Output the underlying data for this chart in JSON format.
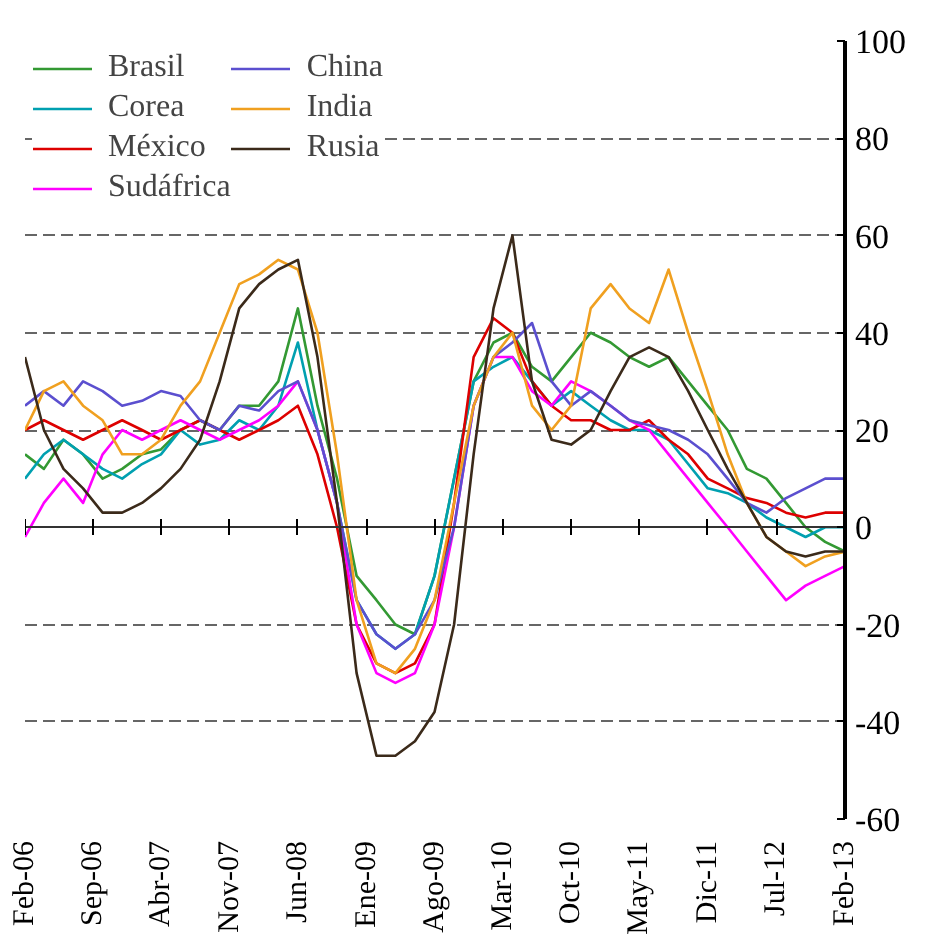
{
  "chart_data": {
    "type": "line",
    "x": [
      "2006-02",
      "2006-04",
      "2006-06",
      "2006-08",
      "2006-10",
      "2006-12",
      "2007-02",
      "2007-04",
      "2007-06",
      "2007-08",
      "2007-10",
      "2007-12",
      "2008-02",
      "2008-04",
      "2008-06",
      "2008-08",
      "2008-10",
      "2008-12",
      "2009-02",
      "2009-04",
      "2009-06",
      "2009-08",
      "2009-10",
      "2009-12",
      "2010-02",
      "2010-04",
      "2010-06",
      "2010-08",
      "2010-10",
      "2010-12",
      "2011-02",
      "2011-04",
      "2011-06",
      "2011-08",
      "2011-10",
      "2011-12",
      "2012-02",
      "2012-04",
      "2012-06",
      "2012-08",
      "2012-10",
      "2012-12",
      "2013-02"
    ],
    "series": [
      {
        "name": "Brasil",
        "color": "#339933",
        "values": [
          15,
          12,
          18,
          15,
          10,
          12,
          15,
          16,
          20,
          22,
          20,
          25,
          25,
          30,
          45,
          25,
          10,
          -10,
          -15,
          -20,
          -22,
          -10,
          10,
          30,
          38,
          40,
          33,
          30,
          35,
          40,
          38,
          35,
          33,
          35,
          30,
          25,
          20,
          12,
          10,
          5,
          0,
          -3,
          -5
        ]
      },
      {
        "name": "Corea",
        "color": "#00a0b0",
        "values": [
          10,
          15,
          18,
          15,
          12,
          10,
          13,
          15,
          20,
          17,
          18,
          22,
          20,
          25,
          38,
          20,
          5,
          -15,
          -22,
          -25,
          -22,
          -10,
          10,
          30,
          33,
          35,
          30,
          25,
          28,
          25,
          22,
          20,
          20,
          18,
          13,
          8,
          7,
          5,
          2,
          0,
          -2,
          0,
          0
        ]
      },
      {
        "name": "México",
        "color": "#dd0000",
        "values": [
          20,
          22,
          20,
          18,
          20,
          22,
          20,
          18,
          20,
          22,
          20,
          18,
          20,
          22,
          25,
          15,
          0,
          -20,
          -28,
          -30,
          -28,
          -20,
          5,
          35,
          43,
          40,
          30,
          25,
          22,
          22,
          20,
          20,
          22,
          18,
          15,
          10,
          8,
          6,
          5,
          3,
          2,
          3,
          3
        ]
      },
      {
        "name": "Sudáfrica",
        "color": "#ff00ff",
        "values": [
          -2,
          5,
          10,
          5,
          15,
          20,
          18,
          20,
          22,
          20,
          18,
          20,
          22,
          25,
          30,
          20,
          5,
          -20,
          -30,
          -32,
          -30,
          -20,
          0,
          25,
          35,
          35,
          28,
          25,
          30,
          28,
          25,
          22,
          20,
          15,
          10,
          5,
          0,
          -5,
          -10,
          -15,
          -12,
          -10,
          -8
        ]
      },
      {
        "name": "China",
        "color": "#5b4fcf",
        "values": [
          25,
          28,
          25,
          30,
          28,
          25,
          26,
          28,
          27,
          22,
          20,
          25,
          24,
          28,
          30,
          20,
          5,
          -15,
          -22,
          -25,
          -22,
          -15,
          0,
          25,
          35,
          38,
          42,
          30,
          25,
          28,
          25,
          22,
          21,
          20,
          18,
          15,
          10,
          5,
          3,
          6,
          8,
          10,
          10
        ]
      },
      {
        "name": "India",
        "color": "#f0a020",
        "values": [
          20,
          28,
          30,
          25,
          22,
          15,
          15,
          18,
          25,
          30,
          40,
          50,
          52,
          55,
          53,
          40,
          15,
          -15,
          -28,
          -30,
          -25,
          -15,
          5,
          25,
          35,
          40,
          25,
          20,
          25,
          45,
          50,
          45,
          42,
          53,
          40,
          28,
          15,
          5,
          -2,
          -5,
          -8,
          -6,
          -5
        ]
      },
      {
        "name": "Rusia",
        "color": "#3b2a1a",
        "values": [
          35,
          20,
          12,
          8,
          3,
          3,
          5,
          8,
          12,
          18,
          30,
          45,
          50,
          53,
          55,
          35,
          5,
          -30,
          -47,
          -47,
          -44,
          -38,
          -20,
          15,
          45,
          60,
          30,
          18,
          17,
          20,
          28,
          35,
          37,
          35,
          28,
          20,
          12,
          5,
          -2,
          -5,
          -6,
          -5,
          -5
        ]
      }
    ],
    "xlim": [
      "2006-02",
      "2013-02"
    ],
    "xticks": [
      {
        "value": "2006-02",
        "label": "Feb-06"
      },
      {
        "value": "2006-09",
        "label": "Sep-06"
      },
      {
        "value": "2007-04",
        "label": "Abr-07"
      },
      {
        "value": "2007-11",
        "label": "Nov-07"
      },
      {
        "value": "2008-06",
        "label": "Jun-08"
      },
      {
        "value": "2009-01",
        "label": "Ene-09"
      },
      {
        "value": "2009-08",
        "label": "Ago-09"
      },
      {
        "value": "2010-03",
        "label": "Mar-10"
      },
      {
        "value": "2010-10",
        "label": "Oct-10"
      },
      {
        "value": "2011-05",
        "label": "May-11"
      },
      {
        "value": "2011-12",
        "label": "Dic-11"
      },
      {
        "value": "2012-07",
        "label": "Jul-12"
      },
      {
        "value": "2013-02",
        "label": "Feb-13"
      }
    ],
    "ylim": [
      -60,
      100
    ],
    "yticks": [
      -60,
      -40,
      -20,
      0,
      20,
      40,
      60,
      80,
      100
    ],
    "grid": "y",
    "legend": "top left",
    "line_style": "solid",
    "marker": "none"
  }
}
